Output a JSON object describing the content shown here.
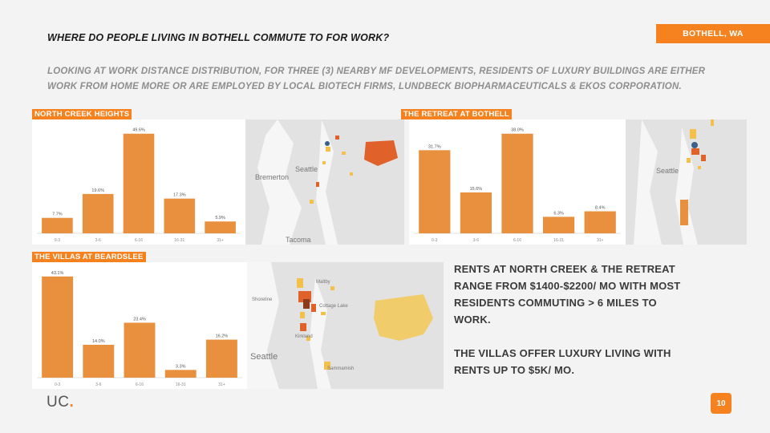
{
  "header": {
    "badge": "BOTHELL, WA",
    "headline": "WHERE DO PEOPLE LIVING IN BOTHELL COMMUTE TO FOR WORK?",
    "subhead": "LOOKING AT WORK DISTANCE DISTRIBUTION, FOR THREE (3) NEARBY MF DEVELOPMENTS, RESIDENTS OF LUXURY BUILDINGS ARE EITHER WORK FROM HOME MORE OR ARE EMPLOYED BY LOCAL BIOTECH FIRMS, LUNDBECK BIOPHARMACEUTICALS & EKOS CORPORATION."
  },
  "chart_data": [
    {
      "type": "bar",
      "title": "NORTH CREEK HEIGHTS",
      "categories": [
        "0-3",
        "3-6",
        "6-16",
        "16-31",
        "31+"
      ],
      "values": [
        7.7,
        19.6,
        49.6,
        17.3,
        5.9
      ],
      "labels": [
        "7.7%",
        "19.6%",
        "49.6%",
        "17.3%",
        "5.9%"
      ],
      "color": "#e8903d"
    },
    {
      "type": "bar",
      "title": "THE RETREAT AT BOTHELL",
      "categories": [
        "0-3",
        "3-6",
        "6-16",
        "16-31",
        "31+"
      ],
      "values": [
        31.7,
        15.6,
        38.0,
        6.3,
        8.4
      ],
      "labels": [
        "31.7%",
        "15.6%",
        "38.0%",
        "6.3%",
        "8.4%"
      ],
      "color": "#e8903d"
    },
    {
      "type": "bar",
      "title": "THE VILLAS AT BEARDSLEE",
      "categories": [
        "0-3",
        "3-6",
        "6-16",
        "16-31",
        "31+"
      ],
      "values": [
        43.1,
        14.0,
        23.4,
        3.3,
        16.2
      ],
      "labels": [
        "43.1%",
        "14.0%",
        "23.4%",
        "3.3%",
        "16.2%"
      ],
      "color": "#e8903d"
    }
  ],
  "maps": {
    "m1": {
      "labels": [
        "Seattle",
        "Bremerton",
        "Tacoma"
      ]
    },
    "m2": {
      "labels": [
        "Seattle"
      ]
    },
    "m3": {
      "labels": [
        "Seattle",
        "Shoreline",
        "Cottage Lake",
        "Sammamish",
        "Maltby",
        "Kirkland"
      ]
    }
  },
  "rents": {
    "p1": "RENTS AT NORTH CREEK & THE RETREAT RANGE FROM $1400-$2200/ MO WITH MOST RESIDENTS COMMUTING > 6 MILES TO WORK.",
    "p2": "THE VILLAS OFFER LUXURY LIVING WITH RENTS UP TO $5K/ MO."
  },
  "footer": {
    "logo_text": "UC",
    "logo_dot": ".",
    "page": "10"
  },
  "colors": {
    "accent": "#f5821f",
    "bar": "#e8903d"
  }
}
